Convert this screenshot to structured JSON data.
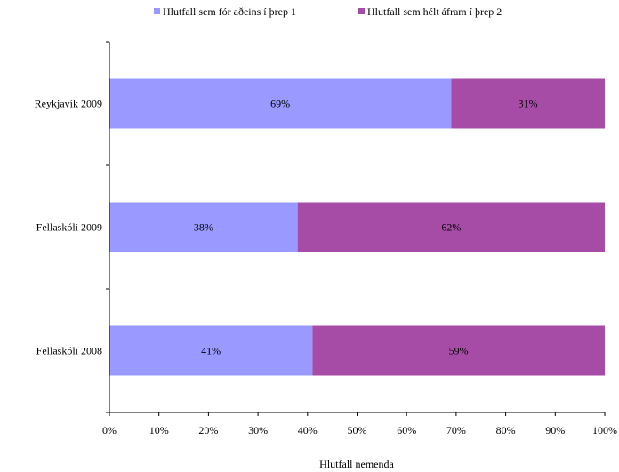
{
  "chart_data": {
    "type": "bar",
    "orientation": "horizontal",
    "stacked": true,
    "categories": [
      "Reykjavík 2009",
      "Fellaskóli 2009",
      "Fellaskóli 2008"
    ],
    "series": [
      {
        "name": "Hlutfall sem fór aðeins í þrep 1",
        "values": [
          69,
          38,
          41
        ],
        "labels": [
          "69%",
          "38%",
          "41%"
        ],
        "color": "#9999ff"
      },
      {
        "name": "Hlutfall sem hélt áfram í þrep 2",
        "values": [
          31,
          62,
          59
        ],
        "labels": [
          "31%",
          "62%",
          "59%"
        ],
        "color": "#a64ca6"
      }
    ],
    "xlabel": "Hlutfall nemenda",
    "xlim": [
      0,
      100
    ],
    "xticks": [
      "0%",
      "10%",
      "20%",
      "30%",
      "40%",
      "50%",
      "60%",
      "70%",
      "80%",
      "90%",
      "100%"
    ],
    "legend_position": "top",
    "grid": false
  }
}
